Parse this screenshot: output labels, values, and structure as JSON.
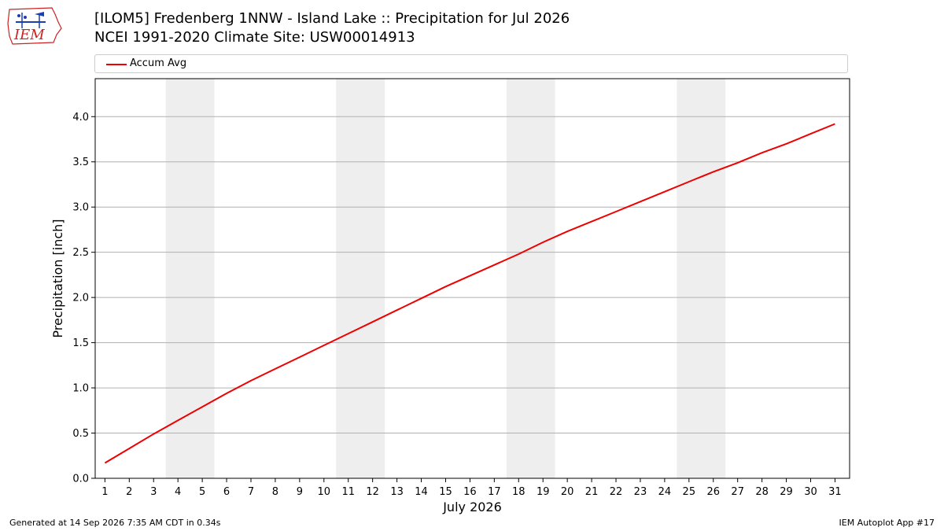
{
  "header": {
    "title": "[ILOM5] Fredenberg 1NNW - Island Lake :: Precipitation for Jul 2026",
    "subtitle": "NCEI 1991-2020 Climate Site: USW00014913",
    "logo_text": "IEM"
  },
  "footer": {
    "generated": "Generated at 14 Sep 2026 7:35 AM CDT in 0.34s",
    "app": "IEM Autoplot App #17"
  },
  "colors": {
    "series": "#ee0000",
    "shade": "#eeeeee",
    "grid": "#b0b0b0",
    "logo_red": "#cc2222",
    "logo_blue": "#1a3fb0"
  },
  "chart_data": {
    "type": "line",
    "xlabel": "July 2026",
    "ylabel": "Precipitation [inch]",
    "x": [
      1,
      2,
      3,
      4,
      5,
      6,
      7,
      8,
      9,
      10,
      11,
      12,
      13,
      14,
      15,
      16,
      17,
      18,
      19,
      20,
      21,
      22,
      23,
      24,
      25,
      26,
      27,
      28,
      29,
      30,
      31
    ],
    "xticks": [
      "1",
      "2",
      "3",
      "4",
      "5",
      "6",
      "7",
      "8",
      "9",
      "10",
      "11",
      "12",
      "13",
      "14",
      "15",
      "16",
      "17",
      "18",
      "19",
      "20",
      "21",
      "22",
      "23",
      "24",
      "25",
      "26",
      "27",
      "28",
      "29",
      "30",
      "31"
    ],
    "xlim": [
      0.6,
      31.6
    ],
    "ylim": [
      0,
      4.42
    ],
    "yticks": [
      "0.0",
      "0.5",
      "1.0",
      "1.5",
      "2.0",
      "2.5",
      "3.0",
      "3.5",
      "4.0"
    ],
    "grid": "horizontal",
    "legend": "top",
    "shaded_ranges": [
      [
        3.5,
        5.5
      ],
      [
        10.5,
        12.5
      ],
      [
        17.5,
        19.5
      ],
      [
        24.5,
        26.5
      ]
    ],
    "series": [
      {
        "name": "Accum Avg",
        "values": [
          0.17,
          0.33,
          0.49,
          0.64,
          0.79,
          0.94,
          1.08,
          1.21,
          1.34,
          1.47,
          1.6,
          1.73,
          1.86,
          1.99,
          2.12,
          2.24,
          2.36,
          2.48,
          2.61,
          2.73,
          2.84,
          2.95,
          3.06,
          3.17,
          3.28,
          3.39,
          3.49,
          3.6,
          3.7,
          3.81,
          3.92
        ]
      }
    ]
  }
}
